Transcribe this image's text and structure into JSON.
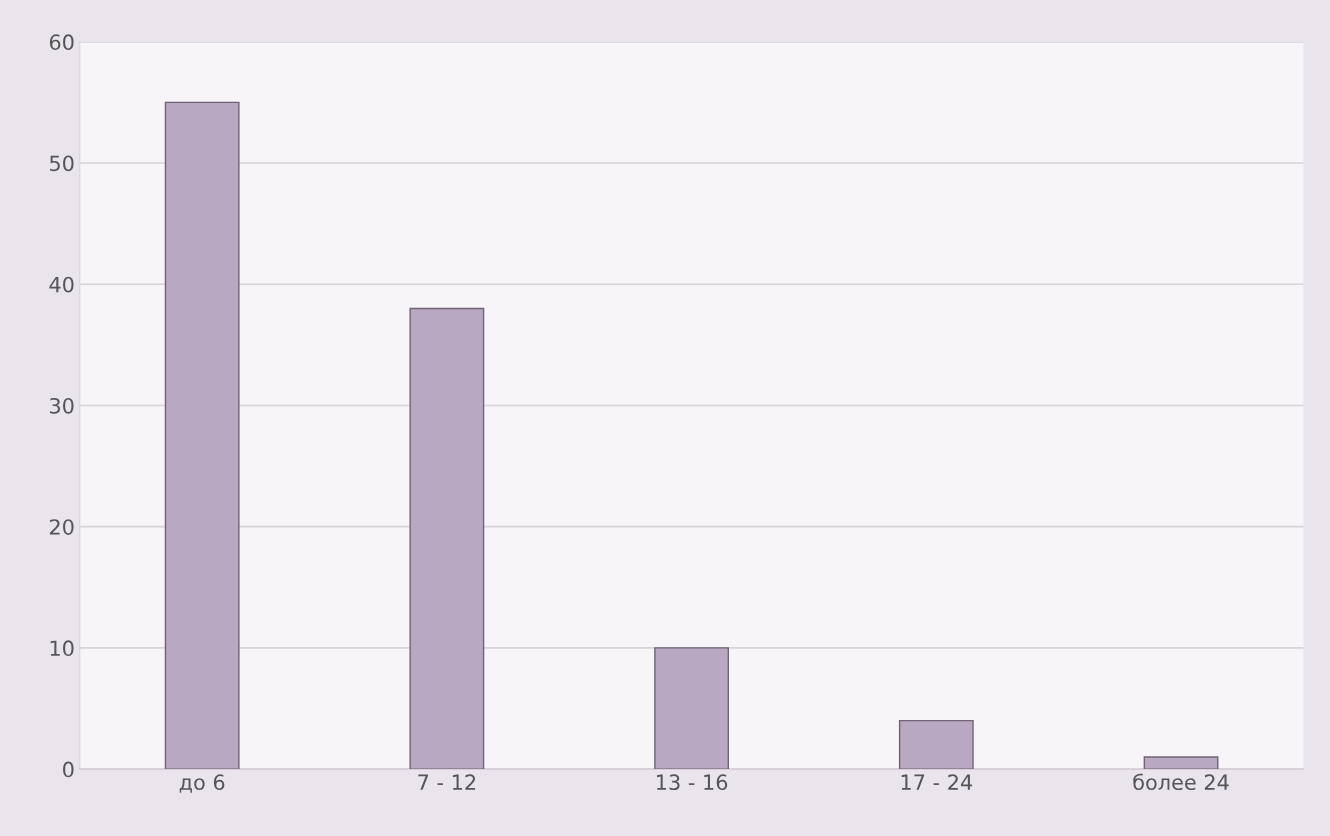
{
  "chart_data": {
    "type": "bar",
    "categories": [
      "до 6",
      "7 - 12",
      "13 - 16",
      "17 - 24",
      "более 24"
    ],
    "values": [
      55,
      38,
      10,
      4,
      1
    ],
    "color": "#b9a8c1",
    "ylim": [
      0,
      60
    ],
    "yticks": [
      0,
      10,
      20,
      30,
      40,
      50,
      60
    ],
    "grid": "y"
  }
}
